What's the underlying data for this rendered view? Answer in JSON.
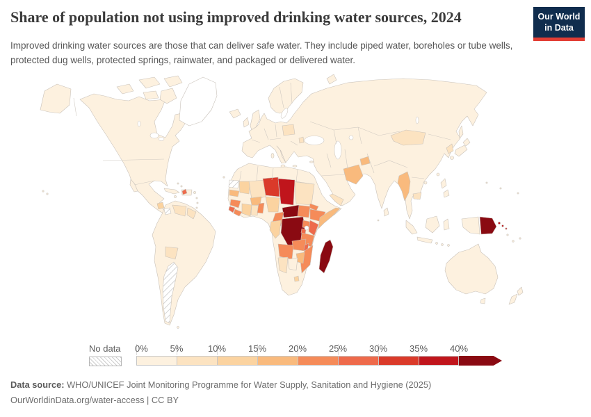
{
  "header": {
    "title": "Share of population not using improved drinking water sources, 2024",
    "subtitle": "Improved drinking water sources are those that can deliver safe water. They include piped water, boreholes or tube wells, protected dug wells, protected springs, rainwater, and packaged or delivered water.",
    "logo": {
      "line1": "Our World",
      "line2": "in Data"
    }
  },
  "chart_data": {
    "type": "choropleth-map",
    "title": "Share of population not using improved drinking water sources",
    "year": "2024",
    "unit": "%",
    "legend": {
      "no_data_label": "No data",
      "ticks": [
        "0%",
        "5%",
        "10%",
        "15%",
        "20%",
        "25%",
        "30%",
        "35%",
        "40%"
      ],
      "bins": [
        "0-5%",
        "5-10%",
        "10-15%",
        "15-20%",
        "20-25%",
        "25-30%",
        "30-35%",
        "35-40%",
        "40%+"
      ],
      "bin_colors": [
        "#fdf1df",
        "#fce3c1",
        "#fbd3a0",
        "#f9ba7d",
        "#f58b59",
        "#ee6a4b",
        "#da3a2a",
        "#c0151c",
        "#8a0a12"
      ],
      "open_ended": true
    },
    "default_bin": "0-5%",
    "regions": [
      {
        "id": "drc",
        "name": "Democratic Republic of Congo",
        "bin": "40%+"
      },
      {
        "id": "car",
        "name": "Central African Republic",
        "bin": "40%+"
      },
      {
        "id": "madagascar",
        "name": "Madagascar",
        "bin": "40%+"
      },
      {
        "id": "png",
        "name": "Papua New Guinea",
        "bin": "40%+"
      },
      {
        "id": "chad",
        "name": "Chad",
        "bin": "35-40%"
      },
      {
        "id": "solomon",
        "name": "Solomon Islands",
        "bin": "35-40%"
      },
      {
        "id": "niger",
        "name": "Niger",
        "bin": "30-35%"
      },
      {
        "id": "kenya",
        "name": "Kenya",
        "bin": "25-30%"
      },
      {
        "id": "sierra-leone",
        "name": "Sierra Leone",
        "bin": "25-30%"
      },
      {
        "id": "malawi",
        "name": "Malawi",
        "bin": "25-30%"
      },
      {
        "id": "rwanda-burundi",
        "name": "Rwanda and Burundi",
        "bin": "25-30%"
      },
      {
        "id": "haiti",
        "name": "Haiti",
        "bin": "25-30%"
      },
      {
        "id": "south-sudan",
        "name": "South Sudan",
        "bin": "20-25%"
      },
      {
        "id": "ethiopia",
        "name": "Ethiopia",
        "bin": "20-25%"
      },
      {
        "id": "eritrea",
        "name": "Eritrea",
        "bin": "20-25%"
      },
      {
        "id": "uganda",
        "name": "Uganda",
        "bin": "20-25%"
      },
      {
        "id": "tanzania",
        "name": "Tanzania",
        "bin": "20-25%"
      },
      {
        "id": "angola",
        "name": "Angola",
        "bin": "20-25%"
      },
      {
        "id": "zambia",
        "name": "Zambia",
        "bin": "20-25%"
      },
      {
        "id": "mozambique",
        "name": "Mozambique",
        "bin": "20-25%"
      },
      {
        "id": "cameroon",
        "name": "Cameroon",
        "bin": "20-25%"
      },
      {
        "id": "guinea",
        "name": "Guinea",
        "bin": "20-25%"
      },
      {
        "id": "liberia",
        "name": "Liberia",
        "bin": "20-25%"
      },
      {
        "id": "benin-togo",
        "name": "Benin and Togo",
        "bin": "20-25%"
      },
      {
        "id": "somalia",
        "name": "Somalia",
        "bin": "15-20%"
      },
      {
        "id": "zimbabwe",
        "name": "Zimbabwe",
        "bin": "15-20%"
      },
      {
        "id": "senegal",
        "name": "Senegal",
        "bin": "15-20%"
      },
      {
        "id": "burkina",
        "name": "Burkina Faso",
        "bin": "15-20%"
      },
      {
        "id": "afghanistan",
        "name": "Afghanistan",
        "bin": "15-20%"
      },
      {
        "id": "tajikistan",
        "name": "Tajikistan",
        "bin": "15-20%"
      },
      {
        "id": "myanmar",
        "name": "Myanmar",
        "bin": "15-20%"
      },
      {
        "id": "mauritania",
        "name": "Mauritania",
        "bin": "10-15%"
      },
      {
        "id": "nigeria",
        "name": "Nigeria",
        "bin": "10-15%"
      },
      {
        "id": "cote-divoire",
        "name": "Côte d'Ivoire",
        "bin": "10-15%"
      },
      {
        "id": "congo-gabon",
        "name": "Congo and Gabon",
        "bin": "10-15%"
      },
      {
        "id": "lesotho",
        "name": "Lesotho",
        "bin": "10-15%"
      },
      {
        "id": "guatemala",
        "name": "Guatemala",
        "bin": "10-15%"
      },
      {
        "id": "mali",
        "name": "Mali",
        "bin": "5-10%"
      },
      {
        "id": "ghana",
        "name": "Ghana",
        "bin": "5-10%"
      },
      {
        "id": "sudan",
        "name": "Sudan",
        "bin": "5-10%"
      },
      {
        "id": "namibia",
        "name": "Namibia",
        "bin": "5-10%"
      },
      {
        "id": "yemen",
        "name": "Yemen",
        "bin": "5-10%"
      },
      {
        "id": "mongolia",
        "name": "Mongolia",
        "bin": "5-10%"
      },
      {
        "id": "cambodia",
        "name": "Cambodia",
        "bin": "5-10%"
      },
      {
        "id": "north-korea",
        "name": "North Korea",
        "bin": "5-10%"
      },
      {
        "id": "poland",
        "name": "Poland",
        "bin": "5-10%"
      },
      {
        "id": "moldova",
        "name": "Moldova",
        "bin": "5-10%"
      },
      {
        "id": "venezuela",
        "name": "Venezuela",
        "bin": "5-10%"
      },
      {
        "id": "guyana-suriname",
        "name": "Guyana and Suriname",
        "bin": "5-10%"
      },
      {
        "id": "bolivia",
        "name": "Bolivia",
        "bin": "5-10%"
      },
      {
        "id": "botswana",
        "name": "Botswana",
        "bin": "0-5%"
      },
      {
        "id": "greenland",
        "name": "Greenland",
        "bin": "0-5%",
        "fill": "#ffffff"
      },
      {
        "id": "argentina",
        "name": "Argentina",
        "bin": "No data"
      },
      {
        "id": "nicaragua",
        "name": "Nicaragua",
        "bin": "No data"
      },
      {
        "id": "western-sahara",
        "name": "Western Sahara",
        "bin": "No data"
      }
    ]
  },
  "footer": {
    "source_label": "Data source:",
    "source": "WHO/UNICEF Joint Monitoring Programme for Water Supply, Sanitation and Hygiene (2025)",
    "citation": "OurWorldinData.org/water-access | CC BY"
  },
  "colors": {
    "logo_navy": "#102d4e",
    "logo_red": "#e23d34",
    "border": "#c9c2ba",
    "ocean": "#ffffff",
    "no_data_hatch": "#cccccc"
  }
}
